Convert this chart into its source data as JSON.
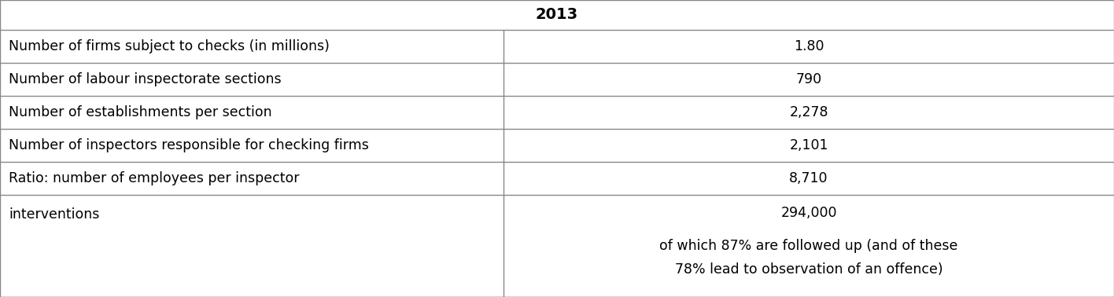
{
  "header": "2013",
  "rows": [
    {
      "label": "Number of firms subject to checks (in millions)",
      "value": "1.80"
    },
    {
      "label": "Number of labour inspectorate sections",
      "value": "790"
    },
    {
      "label": "Number of establishments per section",
      "value": "2,278"
    },
    {
      "label": "Number of inspectors responsible for checking firms",
      "value": "2,101"
    },
    {
      "label": "Ratio: number of employees per inspector",
      "value": "8,710"
    },
    {
      "label": "interventions",
      "value_lines": [
        "294,000",
        "of which 87% are followed up (and of these",
        "78% lead to observation of an offence)"
      ]
    }
  ],
  "col_split": 0.452,
  "bg_color": "#ffffff",
  "border_color": "#888888",
  "text_color": "#000000",
  "header_fontsize": 14,
  "body_fontsize": 12.5,
  "figsize": [
    14.16,
    3.78
  ],
  "dpi": 100
}
